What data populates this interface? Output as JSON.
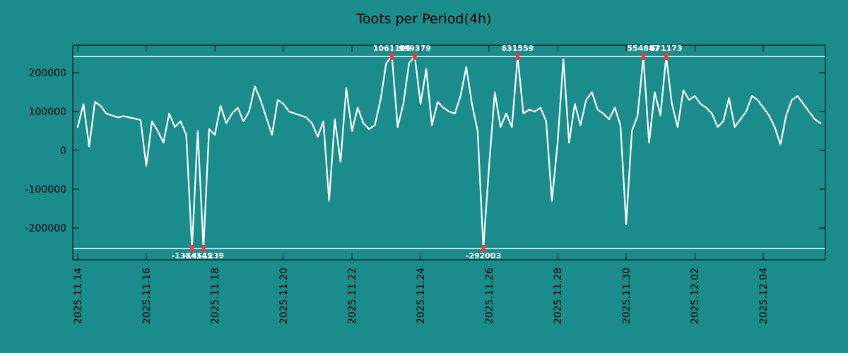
{
  "title": "Toots per Period(4h)",
  "colors": {
    "background": "#1a8c8c",
    "line": "#ffffff",
    "clip_line": "#ffffff",
    "marker": "#ff3333",
    "marker_label": "#ffffff",
    "axis_text": "#000000",
    "border": "#000000"
  },
  "chart_data": {
    "type": "line",
    "title": "Toots per Period(4h)",
    "series_name": "toots-per-4h",
    "x_start": "2025.11.14 00:00",
    "x_step_hours": 4,
    "x_tick_every_points": 12,
    "x_tick_labels": [
      "2025.11.14",
      "2025.11.16",
      "2025.11.18",
      "2025.11.20",
      "2025.11.22",
      "2025.11.24",
      "2025.11.26",
      "2025.11.28",
      "2025.11.30",
      "2025.12.02",
      "2025.12.04"
    ],
    "y_ticks": [
      200000,
      100000,
      0,
      -100000,
      -200000
    ],
    "y_tick_labels": [
      "200000",
      "100000",
      "0",
      "-100000",
      "-200000"
    ],
    "ylim": [
      -250000,
      250000
    ],
    "clip_value": 250000,
    "grid": false,
    "legend": "none",
    "values": [
      60000,
      120000,
      10000,
      125000,
      115000,
      95000,
      90000,
      85000,
      88000,
      85000,
      82000,
      78000,
      -40000,
      75000,
      50000,
      20000,
      95000,
      60000,
      75000,
      40000,
      -1384145,
      50000,
      -1451239,
      55000,
      40000,
      115000,
      70000,
      95000,
      110000,
      75000,
      100000,
      165000,
      130000,
      85000,
      40000,
      130000,
      120000,
      100000,
      95000,
      90000,
      85000,
      70000,
      35000,
      75000,
      -130000,
      80000,
      -30000,
      160000,
      50000,
      110000,
      70000,
      55000,
      65000,
      130000,
      225000,
      1061105,
      60000,
      120000,
      225000,
      999379,
      120000,
      210000,
      65000,
      125000,
      110000,
      100000,
      95000,
      140000,
      215000,
      120000,
      50000,
      -292003,
      -40000,
      150000,
      60000,
      95000,
      60000,
      631559,
      95000,
      105000,
      100000,
      110000,
      75000,
      -130000,
      20000,
      235000,
      20000,
      120000,
      65000,
      130000,
      150000,
      105000,
      95000,
      80000,
      110000,
      65000,
      -190000,
      50000,
      90000,
      554887,
      20000,
      150000,
      90000,
      671173,
      120000,
      60000,
      155000,
      130000,
      140000,
      120000,
      110000,
      95000,
      60000,
      75000,
      135000,
      60000,
      80000,
      100000,
      140000,
      130000,
      110000,
      90000,
      60000,
      15000,
      90000,
      130000,
      140000,
      120000,
      100000,
      80000,
      70000
    ],
    "annotations": [
      {
        "index": 20,
        "value": -1384145,
        "label": "-1384145",
        "position": "bottom"
      },
      {
        "index": 22,
        "value": -1451239,
        "label": "-1451239",
        "position": "bottom"
      },
      {
        "index": 55,
        "value": 1061105,
        "label": "1061105",
        "position": "top"
      },
      {
        "index": 59,
        "value": 999379,
        "label": "999379",
        "position": "top"
      },
      {
        "index": 71,
        "value": -292003,
        "label": "-292003",
        "position": "bottom"
      },
      {
        "index": 77,
        "value": 631559,
        "label": "631559",
        "position": "top"
      },
      {
        "index": 99,
        "value": 554887,
        "label": "554887",
        "position": "top"
      },
      {
        "index": 103,
        "value": 671173,
        "label": "671173",
        "position": "top"
      }
    ]
  }
}
